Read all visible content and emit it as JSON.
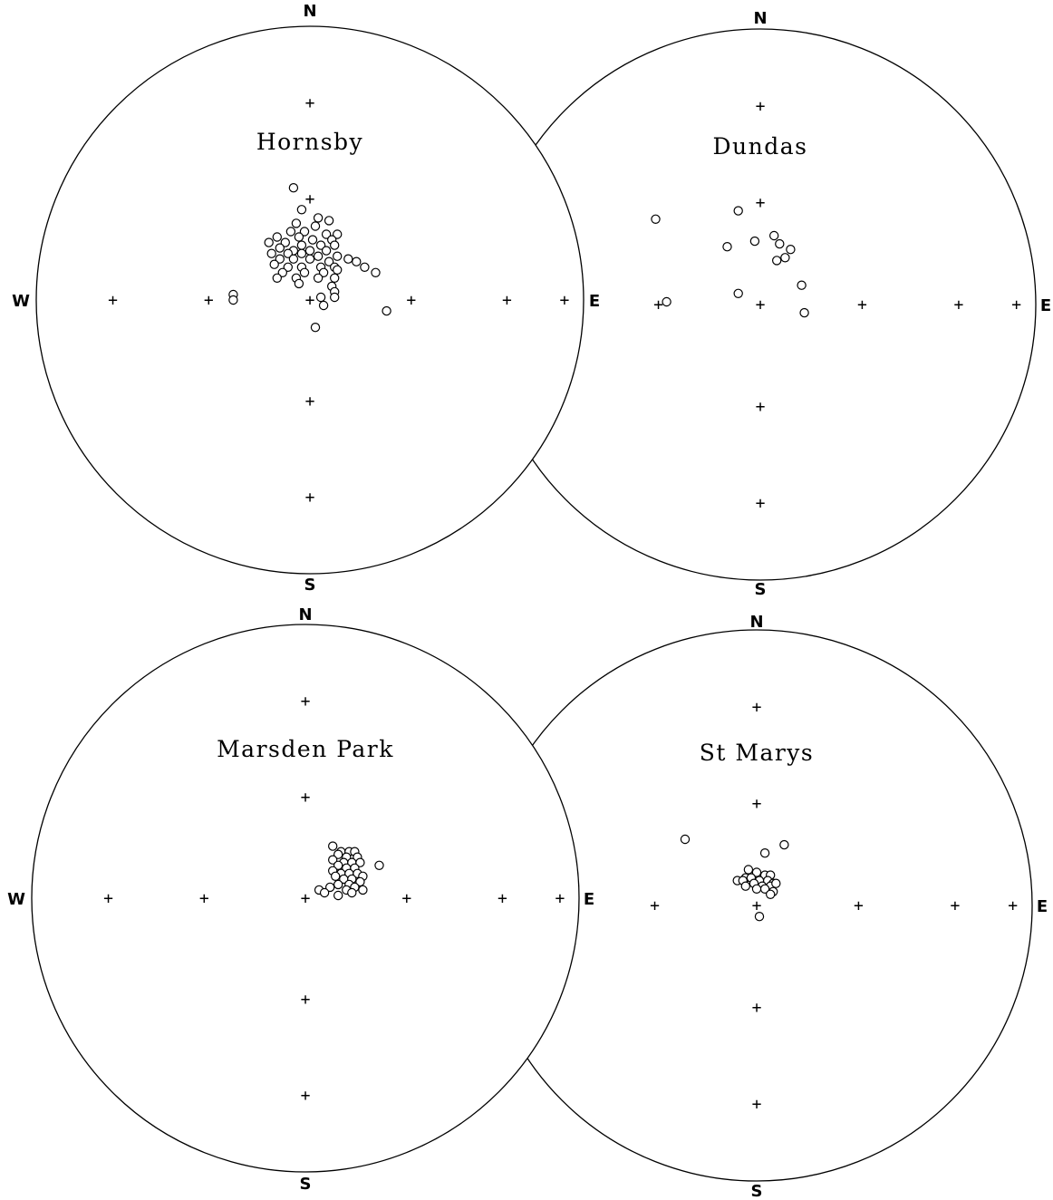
{
  "figure": {
    "plots": [
      {
        "title": "Hornsby",
        "labels": {
          "n": "N",
          "s": "S",
          "e": "E",
          "w": "W"
        },
        "points": [
          [
            -0.06,
            0.41
          ],
          [
            -0.03,
            0.33
          ],
          [
            0.03,
            0.3
          ],
          [
            0.07,
            0.29
          ],
          [
            -0.05,
            0.28
          ],
          [
            0.02,
            0.27
          ],
          [
            -0.07,
            0.25
          ],
          [
            -0.02,
            0.25
          ],
          [
            0.06,
            0.24
          ],
          [
            0.1,
            0.24
          ],
          [
            -0.12,
            0.23
          ],
          [
            -0.04,
            0.23
          ],
          [
            0.01,
            0.22
          ],
          [
            0.08,
            0.22
          ],
          [
            -0.15,
            0.21
          ],
          [
            -0.09,
            0.21
          ],
          [
            -0.03,
            0.2
          ],
          [
            0.04,
            0.2
          ],
          [
            0.09,
            0.2
          ],
          [
            -0.11,
            0.19
          ],
          [
            -0.06,
            0.18
          ],
          [
            0.0,
            0.18
          ],
          [
            0.06,
            0.18
          ],
          [
            -0.14,
            0.17
          ],
          [
            -0.08,
            0.17
          ],
          [
            -0.03,
            0.17
          ],
          [
            0.03,
            0.16
          ],
          [
            0.1,
            0.16
          ],
          [
            -0.11,
            0.15
          ],
          [
            -0.06,
            0.15
          ],
          [
            0.0,
            0.15
          ],
          [
            0.07,
            0.14
          ],
          [
            0.14,
            0.15
          ],
          [
            0.17,
            0.14
          ],
          [
            -0.13,
            0.13
          ],
          [
            -0.08,
            0.12
          ],
          [
            -0.03,
            0.12
          ],
          [
            0.04,
            0.12
          ],
          [
            0.09,
            0.12
          ],
          [
            0.2,
            0.12
          ],
          [
            -0.1,
            0.1
          ],
          [
            -0.02,
            0.1
          ],
          [
            0.05,
            0.1
          ],
          [
            0.1,
            0.11
          ],
          [
            0.24,
            0.1
          ],
          [
            -0.12,
            0.08
          ],
          [
            -0.05,
            0.08
          ],
          [
            0.03,
            0.08
          ],
          [
            0.09,
            0.08
          ],
          [
            -0.04,
            0.06
          ],
          [
            0.08,
            0.05
          ],
          [
            0.09,
            0.03
          ],
          [
            0.04,
            0.01
          ],
          [
            0.09,
            0.01
          ],
          [
            -0.28,
            0.02
          ],
          [
            -0.28,
            0.0
          ],
          [
            0.05,
            -0.02
          ],
          [
            0.28,
            -0.04
          ],
          [
            0.02,
            -0.1
          ]
        ]
      },
      {
        "title": "Dundas",
        "labels": {
          "n": "N",
          "s": "S",
          "e": "E"
        },
        "points": [
          [
            -0.38,
            0.31
          ],
          [
            -0.08,
            0.34
          ],
          [
            0.05,
            0.25
          ],
          [
            0.07,
            0.22
          ],
          [
            -0.12,
            0.21
          ],
          [
            0.11,
            0.2
          ],
          [
            -0.02,
            0.23
          ],
          [
            0.06,
            0.16
          ],
          [
            0.09,
            0.17
          ],
          [
            0.15,
            0.07
          ],
          [
            -0.08,
            0.04
          ],
          [
            -0.34,
            0.01
          ],
          [
            0.16,
            -0.03
          ]
        ]
      },
      {
        "title": "Marsden Park",
        "labels": {
          "n": "N",
          "s": "S",
          "e": "E",
          "w": "W"
        },
        "points": [
          [
            0.1,
            0.19
          ],
          [
            0.13,
            0.17
          ],
          [
            0.16,
            0.17
          ],
          [
            0.18,
            0.17
          ],
          [
            0.12,
            0.16
          ],
          [
            0.15,
            0.15
          ],
          [
            0.19,
            0.15
          ],
          [
            0.1,
            0.14
          ],
          [
            0.14,
            0.13
          ],
          [
            0.17,
            0.13
          ],
          [
            0.2,
            0.13
          ],
          [
            0.27,
            0.12
          ],
          [
            0.12,
            0.12
          ],
          [
            0.15,
            0.11
          ],
          [
            0.18,
            0.11
          ],
          [
            0.1,
            0.1
          ],
          [
            0.13,
            0.09
          ],
          [
            0.16,
            0.09
          ],
          [
            0.19,
            0.09
          ],
          [
            0.11,
            0.08
          ],
          [
            0.21,
            0.08
          ],
          [
            0.14,
            0.07
          ],
          [
            0.17,
            0.07
          ],
          [
            0.2,
            0.06
          ],
          [
            0.12,
            0.05
          ],
          [
            0.16,
            0.05
          ],
          [
            0.09,
            0.04
          ],
          [
            0.18,
            0.04
          ],
          [
            0.15,
            0.03
          ],
          [
            0.21,
            0.03
          ],
          [
            0.05,
            0.03
          ],
          [
            0.07,
            0.02
          ],
          [
            0.12,
            0.01
          ],
          [
            0.17,
            0.02
          ]
        ]
      },
      {
        "title": "St Marys",
        "labels": {
          "n": "N",
          "s": "S",
          "e": "E"
        },
        "points": [
          [
            -0.26,
            0.24
          ],
          [
            0.1,
            0.22
          ],
          [
            0.03,
            0.19
          ],
          [
            -0.03,
            0.13
          ],
          [
            0.0,
            0.12
          ],
          [
            0.03,
            0.11
          ],
          [
            0.05,
            0.11
          ],
          [
            -0.04,
            0.1
          ],
          [
            -0.02,
            0.1
          ],
          [
            0.01,
            0.09
          ],
          [
            0.04,
            0.09
          ],
          [
            0.06,
            0.08
          ],
          [
            -0.07,
            0.09
          ],
          [
            -0.05,
            0.09
          ],
          [
            -0.01,
            0.08
          ],
          [
            0.02,
            0.07
          ],
          [
            0.05,
            0.07
          ],
          [
            0.07,
            0.08
          ],
          [
            -0.04,
            0.07
          ],
          [
            0.0,
            0.06
          ],
          [
            0.03,
            0.06
          ],
          [
            0.06,
            0.05
          ],
          [
            0.05,
            0.04
          ],
          [
            0.01,
            -0.04
          ]
        ]
      }
    ]
  }
}
